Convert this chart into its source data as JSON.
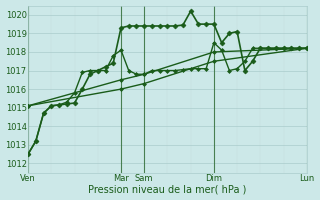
{
  "background_color": "#cce8e8",
  "grid_color_major": "#aacccc",
  "grid_color_minor": "#c4dcdc",
  "line_color": "#1a5c1a",
  "xlabel": "Pression niveau de la mer( hPa )",
  "ylim": [
    1011.5,
    1020.5
  ],
  "yticks": [
    1012,
    1013,
    1014,
    1015,
    1016,
    1017,
    1018,
    1019,
    1020
  ],
  "x_tick_positions": [
    0,
    96,
    120,
    192,
    288
  ],
  "x_tick_labels": [
    "Ven",
    "Mar",
    "Sam",
    "Dim",
    "Lun"
  ],
  "vline_positions": [
    0,
    96,
    120,
    192,
    288
  ],
  "series": [
    {
      "x": [
        0,
        8,
        16,
        24,
        32,
        40,
        48,
        56,
        64,
        72,
        80,
        88,
        96,
        104,
        112,
        120,
        128,
        136,
        144,
        152,
        160,
        168,
        176,
        184,
        192,
        200,
        208,
        216,
        224,
        232,
        240,
        248,
        256,
        264,
        272,
        280,
        288
      ],
      "y": [
        1012.5,
        1013.2,
        1014.7,
        1015.1,
        1015.15,
        1015.2,
        1015.25,
        1016.0,
        1016.8,
        1017.0,
        1017.2,
        1017.4,
        1019.3,
        1019.4,
        1019.4,
        1019.4,
        1019.4,
        1019.4,
        1019.4,
        1019.4,
        1019.45,
        1020.2,
        1019.5,
        1019.5,
        1019.5,
        1018.5,
        1019.0,
        1019.1,
        1017.0,
        1017.5,
        1018.2,
        1018.2,
        1018.2,
        1018.2,
        1018.2,
        1018.2,
        1018.2
      ],
      "marker": "D",
      "markersize": 2.5,
      "linewidth": 1.2,
      "linestyle": "-",
      "zorder": 5
    },
    {
      "x": [
        0,
        8,
        16,
        24,
        32,
        40,
        48,
        56,
        64,
        72,
        80,
        88,
        96,
        104,
        112,
        120,
        128,
        136,
        144,
        152,
        160,
        168,
        176,
        184,
        192,
        200,
        208,
        216,
        224,
        232,
        240,
        248,
        256,
        264,
        272,
        280,
        288
      ],
      "y": [
        1012.5,
        1013.2,
        1014.7,
        1015.1,
        1015.15,
        1015.3,
        1015.8,
        1016.9,
        1017.0,
        1017.0,
        1017.0,
        1017.8,
        1018.1,
        1017.0,
        1016.8,
        1016.8,
        1017.0,
        1017.0,
        1017.0,
        1017.0,
        1017.05,
        1017.1,
        1017.1,
        1017.1,
        1018.5,
        1018.1,
        1017.0,
        1017.1,
        1017.5,
        1018.2,
        1018.2,
        1018.2,
        1018.2,
        1018.2,
        1018.2,
        1018.2,
        1018.2
      ],
      "marker": "D",
      "markersize": 2.0,
      "linewidth": 1.0,
      "linestyle": "-",
      "zorder": 4
    },
    {
      "x": [
        0,
        96,
        120,
        192,
        288
      ],
      "y": [
        1015.1,
        1016.5,
        1016.8,
        1018.0,
        1018.2
      ],
      "marker": "D",
      "markersize": 2.0,
      "linewidth": 1.0,
      "linestyle": "-",
      "zorder": 3
    },
    {
      "x": [
        0,
        96,
        120,
        192,
        288
      ],
      "y": [
        1015.1,
        1016.0,
        1016.3,
        1017.5,
        1018.2
      ],
      "marker": "D",
      "markersize": 2.0,
      "linewidth": 1.0,
      "linestyle": "-",
      "zorder": 3
    }
  ],
  "ylabel_fontsize": 6,
  "xlabel_fontsize": 7,
  "tick_fontsize": 6
}
